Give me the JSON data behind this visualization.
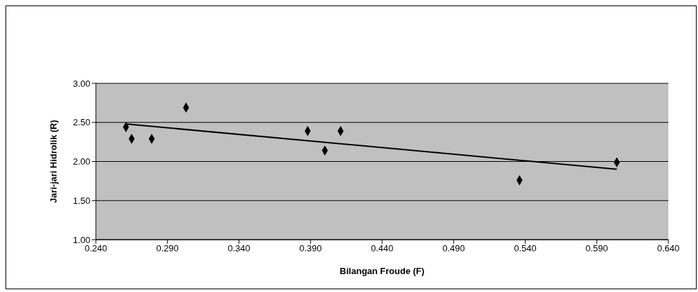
{
  "chart_data": {
    "type": "scatter",
    "xlabel": "Bilangan Froude (F)",
    "ylabel": "Jari-jari Hidrolik (R)",
    "xlim": [
      0.24,
      0.64
    ],
    "xticks": [
      {
        "value": 0.24,
        "label": "0.240"
      },
      {
        "value": 0.29,
        "label": "0.290"
      },
      {
        "value": 0.34,
        "label": "0.340"
      },
      {
        "value": 0.39,
        "label": "0.390"
      },
      {
        "value": 0.44,
        "label": "0.440"
      },
      {
        "value": 0.49,
        "label": "0.490"
      },
      {
        "value": 0.54,
        "label": "0.540"
      },
      {
        "value": 0.59,
        "label": "0.590"
      },
      {
        "value": 0.64,
        "label": "0.640"
      }
    ],
    "ylim": [
      1,
      3
    ],
    "yticks": [
      {
        "value": 1,
        "label": "1.00"
      },
      {
        "value": 1.5,
        "label": "1.50"
      },
      {
        "value": 2,
        "label": "2.00"
      },
      {
        "value": 2.5,
        "label": "2.50"
      },
      {
        "value": 3,
        "label": "3.00"
      }
    ],
    "grid": "y",
    "marker": "diamond",
    "series": [
      {
        "color": "#000000",
        "x": [
          0.261,
          0.265,
          0.279,
          0.303,
          0.388,
          0.4,
          0.411,
          0.536,
          0.604
        ],
        "values": [
          2.44,
          2.29,
          2.29,
          2.69,
          2.39,
          2.14,
          2.39,
          1.76,
          1.99
        ]
      },
      {
        "type": "line",
        "color": "#000000",
        "marker": "none",
        "x": [
          0.261,
          0.604
        ],
        "values": [
          2.48,
          1.9
        ]
      }
    ]
  }
}
